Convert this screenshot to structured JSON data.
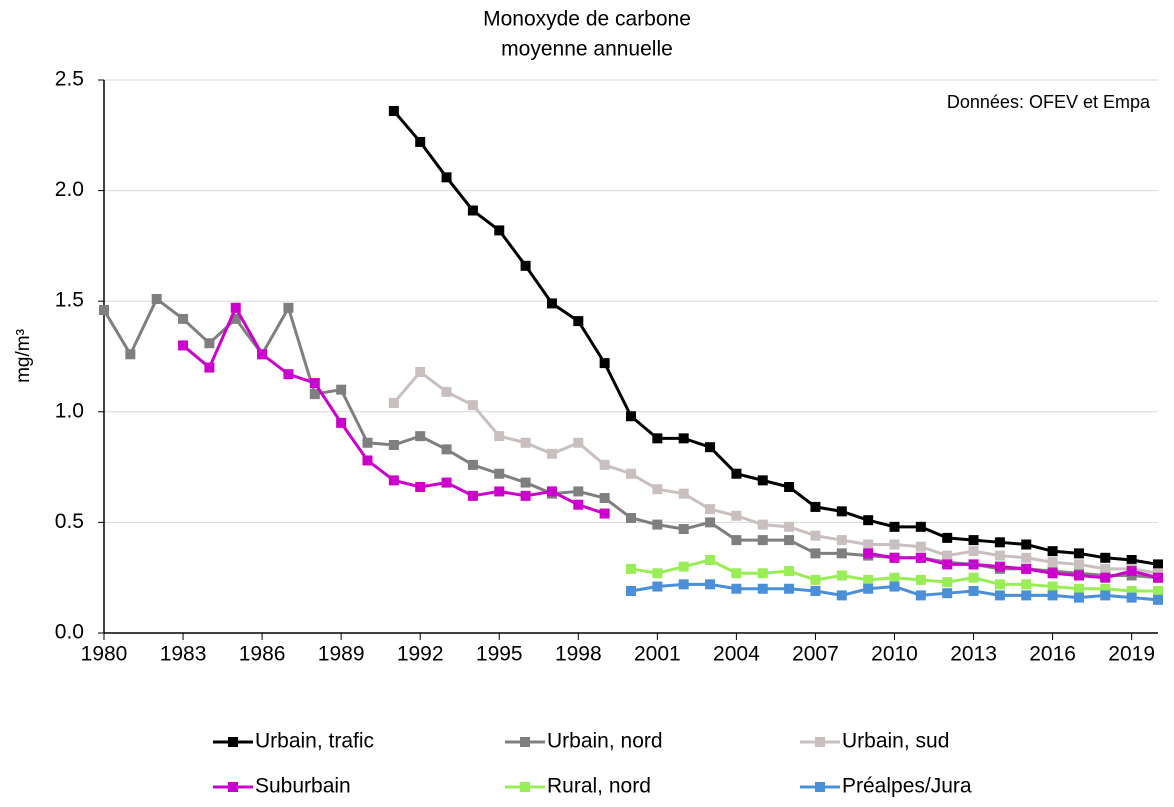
{
  "chart_data": {
    "type": "line",
    "title": "Monoxyde de carbone",
    "subtitle": "moyenne annuelle",
    "y_label": "mg/m³",
    "annotation": "Données: OFEV et Empa",
    "x": [
      1980,
      1981,
      1982,
      1983,
      1984,
      1985,
      1986,
      1987,
      1988,
      1989,
      1990,
      1991,
      1992,
      1993,
      1994,
      1995,
      1996,
      1997,
      1998,
      1999,
      2000,
      2001,
      2002,
      2003,
      2004,
      2005,
      2006,
      2007,
      2008,
      2009,
      2010,
      2011,
      2012,
      2013,
      2014,
      2015,
      2016,
      2017,
      2018,
      2019,
      2020
    ],
    "xlim": [
      1980,
      2020
    ],
    "xticks": [
      1980,
      1983,
      1986,
      1989,
      1992,
      1995,
      1998,
      2001,
      2004,
      2007,
      2010,
      2013,
      2016,
      2019
    ],
    "ylim": [
      0,
      2.5
    ],
    "yticks": [
      {
        "value": 0,
        "label": "0.0"
      },
      0.5,
      {
        "value": 1,
        "label": "1.0"
      },
      1.5,
      {
        "value": 2,
        "label": "2.0"
      },
      2.5
    ],
    "grid": true,
    "legend": "bottom",
    "series": [
      {
        "name": "Urbain, trafic",
        "color": "#000000",
        "values": [
          null,
          null,
          null,
          null,
          null,
          null,
          null,
          null,
          null,
          null,
          null,
          2.36,
          2.22,
          2.06,
          1.91,
          1.82,
          1.66,
          1.49,
          1.41,
          1.22,
          0.98,
          0.88,
          0.88,
          0.84,
          0.72,
          0.69,
          0.66,
          0.57,
          0.55,
          0.51,
          0.48,
          0.48,
          0.43,
          0.42,
          0.41,
          0.4,
          0.37,
          0.36,
          0.34,
          0.33,
          0.31
        ]
      },
      {
        "name": "Urbain, nord",
        "color": "#7f7f7f",
        "values": [
          1.46,
          1.26,
          1.51,
          1.42,
          1.31,
          1.42,
          1.26,
          1.47,
          1.08,
          1.1,
          0.86,
          0.85,
          0.89,
          0.83,
          0.76,
          0.72,
          0.68,
          0.63,
          0.64,
          0.61,
          0.52,
          0.49,
          0.47,
          0.5,
          0.42,
          0.42,
          0.42,
          0.36,
          0.36,
          0.35,
          0.34,
          0.34,
          0.32,
          0.31,
          0.29,
          0.29,
          0.28,
          0.27,
          0.26,
          0.26,
          0.25
        ]
      },
      {
        "name": "Urbain, sud",
        "color": "#c9bfbf",
        "values": [
          null,
          null,
          null,
          null,
          null,
          null,
          null,
          null,
          null,
          null,
          null,
          1.04,
          1.18,
          1.09,
          1.03,
          0.89,
          0.86,
          0.81,
          0.86,
          0.76,
          0.72,
          0.65,
          0.63,
          0.56,
          0.53,
          0.49,
          0.48,
          0.44,
          0.42,
          0.4,
          0.4,
          0.39,
          0.35,
          0.37,
          0.35,
          0.34,
          0.32,
          0.31,
          0.29,
          0.29,
          0.27
        ]
      },
      {
        "name": "Suburbain",
        "color": "#cc00cc",
        "values": [
          null,
          null,
          null,
          1.3,
          1.2,
          1.47,
          1.26,
          1.17,
          1.13,
          0.95,
          0.78,
          0.69,
          0.66,
          0.68,
          0.62,
          0.64,
          0.62,
          0.64,
          0.58,
          0.54,
          null,
          null,
          null,
          null,
          null,
          null,
          null,
          null,
          null,
          0.36,
          0.34,
          0.34,
          0.31,
          0.31,
          0.3,
          0.29,
          0.27,
          0.26,
          0.25,
          0.28,
          0.25
        ]
      },
      {
        "name": "Rural, nord",
        "color": "#99ee55",
        "values": [
          null,
          null,
          null,
          null,
          null,
          null,
          null,
          null,
          null,
          null,
          null,
          null,
          null,
          null,
          null,
          null,
          null,
          null,
          null,
          null,
          0.29,
          0.27,
          0.3,
          0.33,
          0.27,
          0.27,
          0.28,
          0.24,
          0.26,
          0.24,
          0.25,
          0.24,
          0.23,
          0.25,
          0.22,
          0.22,
          0.21,
          0.2,
          0.2,
          0.19,
          0.19
        ]
      },
      {
        "name": "Préalpes/Jura",
        "color": "#4a8fd8",
        "values": [
          null,
          null,
          null,
          null,
          null,
          null,
          null,
          null,
          null,
          null,
          null,
          null,
          null,
          null,
          null,
          null,
          null,
          null,
          null,
          null,
          0.19,
          0.21,
          0.22,
          0.22,
          0.2,
          0.2,
          0.2,
          0.19,
          0.17,
          0.2,
          0.21,
          0.17,
          0.18,
          0.19,
          0.17,
          0.17,
          0.17,
          0.16,
          0.17,
          0.16,
          0.15
        ]
      }
    ]
  }
}
